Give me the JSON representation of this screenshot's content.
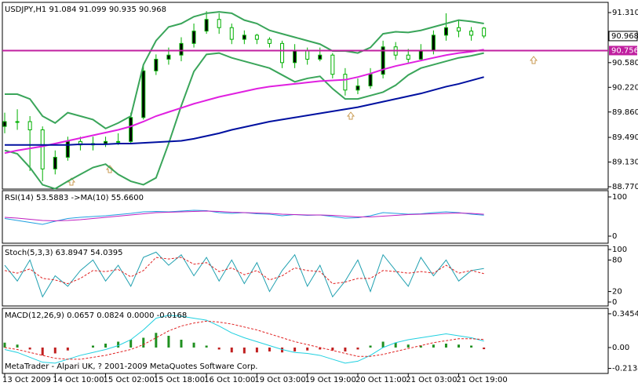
{
  "chart_data": [
    {
      "type": "candlestick",
      "title": "USDJPY,H1  91.084 91.099 90.935 90.968",
      "ylim": [
        88.736,
        91.459
      ],
      "yticks": [
        {
          "value": 91.31,
          "label": "91.310"
        },
        {
          "value": 90.58,
          "label": "90.580"
        },
        {
          "value": 90.22,
          "label": "90.220"
        },
        {
          "value": 89.86,
          "label": "89.860"
        },
        {
          "value": 89.49,
          "label": "89.490"
        },
        {
          "value": 89.13,
          "label": "89.130"
        },
        {
          "value": 88.77,
          "label": "88.770"
        }
      ],
      "candle_color": "#00b000",
      "open": [
        89.65,
        89.72,
        89.72,
        89.6,
        89.03,
        89.2,
        89.43,
        89.38,
        89.4,
        89.43,
        89.43,
        89.78,
        90.46,
        90.63,
        90.69,
        90.86,
        91.04,
        91.21,
        91.09,
        90.92,
        90.98,
        90.92,
        90.86,
        90.58,
        90.75,
        90.63,
        90.69,
        90.41,
        90.18,
        90.24,
        90.41,
        90.81,
        90.69,
        90.63,
        90.75,
        90.98,
        91.09,
        91.04,
        91.084
      ],
      "high": [
        89.85,
        89.9,
        89.8,
        89.65,
        89.3,
        89.5,
        89.5,
        89.5,
        89.5,
        89.55,
        89.85,
        90.55,
        90.7,
        90.8,
        90.95,
        91.15,
        91.33,
        91.3,
        91.15,
        91.05,
        91.0,
        90.95,
        90.9,
        90.85,
        90.8,
        90.8,
        90.72,
        90.5,
        90.35,
        90.5,
        90.9,
        90.88,
        90.78,
        90.85,
        91.05,
        91.3,
        91.2,
        91.1,
        91.099
      ],
      "low": [
        89.55,
        89.6,
        89.0,
        88.85,
        88.95,
        89.15,
        89.3,
        89.3,
        89.35,
        89.38,
        89.4,
        89.75,
        90.4,
        90.55,
        90.6,
        90.8,
        91.0,
        91.0,
        90.85,
        90.85,
        90.85,
        90.8,
        90.5,
        90.5,
        90.55,
        90.6,
        90.35,
        90.1,
        90.12,
        90.2,
        90.35,
        90.62,
        90.58,
        90.6,
        90.7,
        90.9,
        90.95,
        90.9,
        90.935
      ],
      "close": [
        89.72,
        89.72,
        89.6,
        89.03,
        89.2,
        89.43,
        89.38,
        89.4,
        89.43,
        89.43,
        89.78,
        90.46,
        90.63,
        90.69,
        90.86,
        91.04,
        91.21,
        91.09,
        90.92,
        90.98,
        90.92,
        90.86,
        90.58,
        90.75,
        90.63,
        90.69,
        90.41,
        90.18,
        90.24,
        90.41,
        90.81,
        90.69,
        90.63,
        90.75,
        90.98,
        91.09,
        91.04,
        90.98,
        90.968
      ],
      "series": [
        {
          "color": "#3aa55a",
          "kind": "line",
          "width": 2,
          "values": [
            90.12,
            90.12,
            90.05,
            89.8,
            89.7,
            89.85,
            89.8,
            89.75,
            89.62,
            89.7,
            89.8,
            90.55,
            90.9,
            91.1,
            91.15,
            91.25,
            91.3,
            91.32,
            91.3,
            91.2,
            91.15,
            91.05,
            91.0,
            90.95,
            90.9,
            90.85,
            90.75,
            90.75,
            90.72,
            90.8,
            91.0,
            91.03,
            91.02,
            91.05,
            91.1,
            91.15,
            91.2,
            91.18,
            91.15
          ]
        },
        {
          "color": "#3aa55a",
          "kind": "line",
          "width": 2,
          "values": [
            89.3,
            89.25,
            89.05,
            88.8,
            88.74,
            88.85,
            88.95,
            89.05,
            89.1,
            88.95,
            88.85,
            88.8,
            88.9,
            89.4,
            89.95,
            90.45,
            90.7,
            90.72,
            90.65,
            90.6,
            90.55,
            90.5,
            90.4,
            90.3,
            90.35,
            90.38,
            90.2,
            90.05,
            90.05,
            90.1,
            90.15,
            90.25,
            90.4,
            90.5,
            90.55,
            90.6,
            90.65,
            90.68,
            90.72
          ]
        },
        {
          "color": "#e020e0",
          "kind": "line",
          "width": 2,
          "values": [
            89.26,
            89.3,
            89.33,
            89.36,
            89.4,
            89.44,
            89.48,
            89.52,
            89.56,
            89.6,
            89.65,
            89.72,
            89.8,
            89.86,
            89.92,
            89.98,
            90.03,
            90.08,
            90.12,
            90.16,
            90.2,
            90.23,
            90.25,
            90.27,
            90.29,
            90.31,
            90.32,
            90.33,
            90.37,
            90.42,
            90.48,
            90.53,
            90.57,
            90.61,
            90.65,
            90.69,
            90.72,
            90.74,
            90.77
          ]
        },
        {
          "color": "#0010a0",
          "kind": "line",
          "width": 2,
          "values": [
            89.38,
            89.38,
            89.38,
            89.38,
            89.38,
            89.38,
            89.39,
            89.39,
            89.39,
            89.4,
            89.4,
            89.41,
            89.42,
            89.43,
            89.44,
            89.47,
            89.51,
            89.55,
            89.6,
            89.64,
            89.68,
            89.72,
            89.75,
            89.78,
            89.81,
            89.84,
            89.87,
            89.9,
            89.93,
            89.97,
            90.01,
            90.05,
            90.09,
            90.13,
            90.18,
            90.23,
            90.27,
            90.32,
            90.37
          ]
        }
      ],
      "hline": 90.756,
      "hline_color": "#c020a0",
      "current_price": 90.968
    },
    {
      "type": "line",
      "title": "RSI(14) 53.5883  ->MA(10) 55.6600",
      "ylim": [
        -18,
        116
      ],
      "yticks": [
        100,
        0
      ],
      "series": [
        {
          "color": "#20a0e0",
          "kind": "line",
          "width": 1,
          "values": [
            45,
            40,
            35,
            30,
            38,
            45,
            48,
            50,
            52,
            55,
            58,
            62,
            63,
            62,
            64,
            66,
            65,
            60,
            58,
            60,
            57,
            56,
            52,
            55,
            53,
            54,
            50,
            46,
            47,
            52,
            60,
            58,
            56,
            57,
            60,
            62,
            60,
            56,
            53.5883
          ]
        },
        {
          "color": "#c020c0",
          "kind": "line",
          "width": 1,
          "values": [
            48,
            46,
            43,
            40,
            39,
            40,
            42,
            45,
            48,
            51,
            54,
            57,
            60,
            61,
            62,
            63,
            64,
            63,
            61,
            60,
            59,
            58,
            56,
            55,
            54,
            54,
            53,
            51,
            49,
            49,
            51,
            53,
            55,
            56,
            57,
            58,
            59,
            58,
            55.66
          ]
        }
      ]
    },
    {
      "type": "line",
      "title": "Stoch(5,3,3) 63.8947 54.0395",
      "ylim": [
        -7.5,
        107.5
      ],
      "yticks": [
        100,
        80,
        20,
        0
      ],
      "series": [
        {
          "color": "#20a0b0",
          "kind": "line",
          "width": 1,
          "values": [
            70,
            40,
            80,
            10,
            50,
            30,
            60,
            80,
            40,
            70,
            30,
            85,
            95,
            70,
            90,
            50,
            85,
            40,
            80,
            35,
            75,
            20,
            60,
            90,
            30,
            70,
            10,
            40,
            80,
            20,
            90,
            60,
            30,
            85,
            50,
            80,
            40,
            60,
            63.8947
          ]
        },
        {
          "color": "#e02020",
          "kind": "dashed",
          "width": 1,
          "values": [
            60,
            55,
            63,
            45,
            42,
            35,
            45,
            60,
            58,
            62,
            48,
            60,
            85,
            82,
            85,
            72,
            75,
            58,
            65,
            52,
            60,
            42,
            50,
            65,
            60,
            58,
            35,
            38,
            45,
            45,
            60,
            58,
            55,
            58,
            55,
            70,
            55,
            60,
            54.0395
          ]
        }
      ]
    },
    {
      "type": "bar_line",
      "title": "MACD(12,26,9) 0.0657 0.0824 0.0000 -0.0168",
      "ylim": [
        -0.265,
        0.401
      ],
      "yticks": [
        0.3454,
        {
          "value": 0,
          "label": "0.00"
        },
        -0.2134
      ],
      "series": [
        {
          "color": "#209020",
          "negative_color": "#c02020",
          "kind": "hist",
          "values": [
            0.05,
            0.03,
            -0.02,
            -0.08,
            -0.06,
            -0.03,
            0.0,
            0.02,
            0.04,
            0.06,
            0.08,
            0.1,
            0.15,
            0.12,
            0.08,
            0.05,
            0.02,
            -0.02,
            -0.05,
            -0.06,
            -0.05,
            -0.04,
            -0.05,
            -0.04,
            -0.03,
            -0.02,
            -0.03,
            -0.04,
            -0.02,
            0.02,
            0.06,
            0.05,
            0.03,
            0.02,
            0.03,
            0.04,
            0.03,
            0.02,
            -0.0168
          ]
        },
        {
          "color": "#20d0e0",
          "kind": "line",
          "width": 1,
          "values": [
            -0.02,
            -0.05,
            -0.1,
            -0.15,
            -0.16,
            -0.12,
            -0.08,
            -0.05,
            -0.02,
            0.02,
            0.08,
            0.18,
            0.3,
            0.33,
            0.32,
            0.3,
            0.28,
            0.22,
            0.15,
            0.1,
            0.06,
            0.02,
            -0.02,
            -0.05,
            -0.06,
            -0.08,
            -0.12,
            -0.16,
            -0.14,
            -0.08,
            0.0,
            0.05,
            0.08,
            0.1,
            0.12,
            0.14,
            0.12,
            0.1,
            0.0657
          ]
        },
        {
          "color": "#e02020",
          "kind": "dashed",
          "width": 1,
          "values": [
            0.0,
            -0.02,
            -0.05,
            -0.08,
            -0.11,
            -0.12,
            -0.12,
            -0.1,
            -0.08,
            -0.05,
            -0.02,
            0.03,
            0.1,
            0.17,
            0.22,
            0.25,
            0.27,
            0.26,
            0.24,
            0.21,
            0.18,
            0.14,
            0.1,
            0.06,
            0.03,
            0.0,
            -0.03,
            -0.06,
            -0.09,
            -0.09,
            -0.07,
            -0.04,
            -0.01,
            0.02,
            0.05,
            0.07,
            0.09,
            0.09,
            0.0824
          ]
        }
      ],
      "footer": "MetaTrader - Alpari UK, ? 2001-2009 MetaQuotes Software Corp.",
      "xticks": [
        {
          "value": 0,
          "label": "13 Oct 2009"
        },
        {
          "value": 4,
          "label": "14 Oct 10:00"
        },
        {
          "value": 8,
          "label": "15 Oct 02:00"
        },
        {
          "value": 12,
          "label": "15 Oct 18:00"
        },
        {
          "value": 16,
          "label": "16 Oct 10:00"
        },
        {
          "value": 20,
          "label": "19 Oct 03:00"
        },
        {
          "value": 24,
          "label": "19 Oct 19:00"
        },
        {
          "value": 28,
          "label": "20 Oct 11:00"
        },
        {
          "value": 32,
          "label": "21 Oct 03:00"
        },
        {
          "value": 36,
          "label": "21 Oct 19:00"
        }
      ]
    }
  ]
}
